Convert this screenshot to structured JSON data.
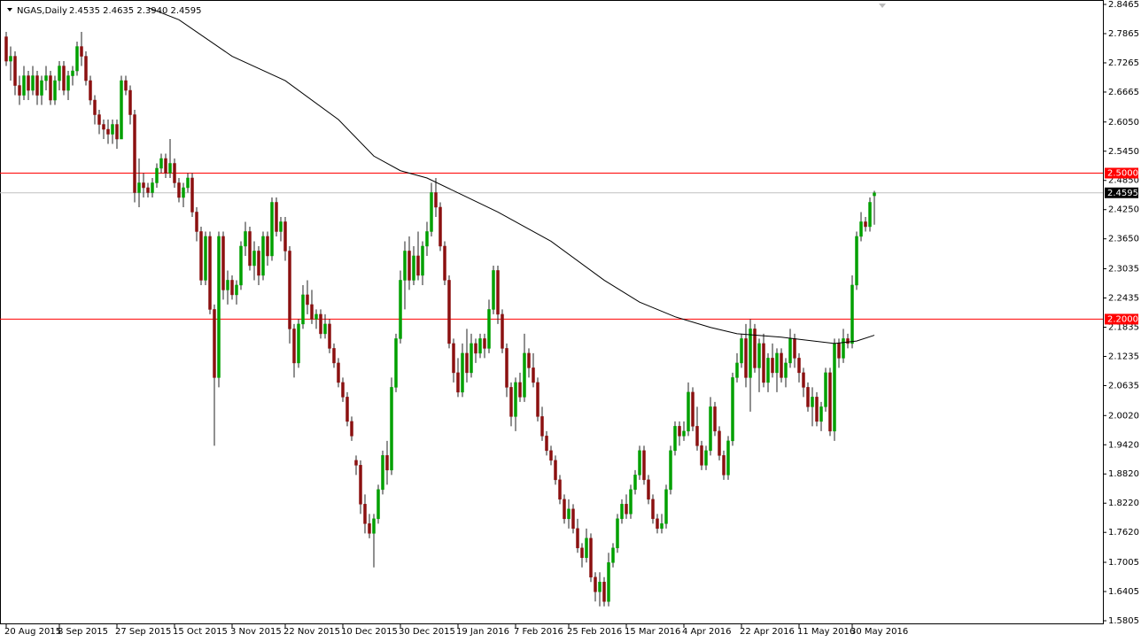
{
  "chart_data": {
    "type": "candlestick",
    "title": "NGAS,Daily",
    "header_ohlc": "2.4535 2.4635 2.3940 2.4595",
    "up_color": "#00a000",
    "down_color": "#8b1010",
    "wick_color": "#222222",
    "ma_color": "#000000",
    "level_color": "#ff0000",
    "current_color": "#c0c0c0",
    "xlim": [
      -1.4,
      247.6
    ],
    "ylim": [
      1.5805,
      2.8465
    ],
    "yticks": [
      2.8465,
      2.7865,
      2.7265,
      2.6665,
      {
        "value": 2.605,
        "label": "2.6050"
      },
      {
        "value": 2.545,
        "label": "2.5450"
      },
      {
        "value": 2.485,
        "label": "2.4850"
      },
      {
        "value": 2.425,
        "label": "2.4250"
      },
      {
        "value": 2.365,
        "label": "2.3650"
      },
      2.3035,
      2.2435,
      2.1835,
      2.1235,
      2.0635,
      {
        "value": 2.002,
        "label": "2.0020"
      },
      {
        "value": 1.942,
        "label": "1.9420"
      },
      {
        "value": 1.882,
        "label": "1.8820"
      },
      {
        "value": 1.822,
        "label": "1.8220"
      },
      {
        "value": 1.762,
        "label": "1.7620"
      },
      1.7005,
      1.6405,
      1.5805
    ],
    "xticks": [
      {
        "value": 0,
        "label": "20 Aug 2015"
      },
      {
        "value": 12,
        "label": "8 Sep 2015"
      },
      {
        "value": 25,
        "label": "27 Sep 2015"
      },
      {
        "value": 38,
        "label": "15 Oct 2015"
      },
      {
        "value": 51,
        "label": "3 Nov 2015"
      },
      {
        "value": 63,
        "label": "22 Nov 2015"
      },
      {
        "value": 76,
        "label": "10 Dec 2015"
      },
      {
        "value": 89,
        "label": "30 Dec 2015"
      },
      {
        "value": 102,
        "label": "19 Jan 2016"
      },
      {
        "value": 115,
        "label": "7 Feb 2016"
      },
      {
        "value": 127,
        "label": "25 Feb 2016"
      },
      {
        "value": 140,
        "label": "15 Mar 2016"
      },
      {
        "value": 153,
        "label": "4 Apr 2016"
      },
      {
        "value": 166,
        "label": "22 Apr 2016"
      },
      {
        "value": 179,
        "label": "11 May 2016"
      },
      {
        "value": 191,
        "label": "30 May 2016"
      }
    ],
    "levels": [
      {
        "value": 2.5,
        "label": "2.5000"
      },
      {
        "value": 2.2,
        "label": "2.2000"
      }
    ],
    "current_price": 2.4595,
    "ma": {
      "x": [
        32,
        39,
        51,
        63,
        75,
        83,
        89,
        95,
        103,
        111,
        123,
        135,
        143,
        151,
        159,
        165,
        175,
        187,
        192,
        196
      ],
      "values": [
        2.84,
        2.815,
        2.74,
        2.69,
        2.61,
        2.535,
        2.505,
        2.49,
        2.455,
        2.42,
        2.36,
        2.28,
        2.235,
        2.205,
        2.183,
        2.17,
        2.163,
        2.15,
        2.155,
        2.167
      ]
    },
    "candles": [
      [
        2.78,
        2.79,
        2.72,
        2.73
      ],
      [
        2.73,
        2.76,
        2.69,
        2.74
      ],
      [
        2.74,
        2.75,
        2.66,
        2.68
      ],
      [
        2.68,
        2.7,
        2.64,
        2.66
      ],
      [
        2.66,
        2.72,
        2.65,
        2.7
      ],
      [
        2.7,
        2.71,
        2.65,
        2.67
      ],
      [
        2.67,
        2.72,
        2.66,
        2.7
      ],
      [
        2.7,
        2.71,
        2.64,
        2.66
      ],
      [
        2.66,
        2.7,
        2.64,
        2.69
      ],
      [
        2.69,
        2.72,
        2.67,
        2.7
      ],
      [
        2.7,
        2.71,
        2.64,
        2.65
      ],
      [
        2.65,
        2.7,
        2.64,
        2.69
      ],
      [
        2.69,
        2.73,
        2.67,
        2.72
      ],
      [
        2.72,
        2.73,
        2.66,
        2.67
      ],
      [
        2.67,
        2.71,
        2.65,
        2.7
      ],
      [
        2.7,
        2.72,
        2.68,
        2.71
      ],
      [
        2.71,
        2.77,
        2.7,
        2.76
      ],
      [
        2.76,
        2.79,
        2.72,
        2.74
      ],
      [
        2.74,
        2.75,
        2.68,
        2.69
      ],
      [
        2.69,
        2.7,
        2.64,
        2.65
      ],
      [
        2.65,
        2.66,
        2.6,
        2.62
      ],
      [
        2.62,
        2.63,
        2.58,
        2.6
      ],
      [
        2.6,
        2.61,
        2.57,
        2.59
      ],
      [
        2.59,
        2.61,
        2.56,
        2.58
      ],
      [
        2.58,
        2.61,
        2.56,
        2.6
      ],
      [
        2.6,
        2.61,
        2.55,
        2.57
      ],
      [
        2.57,
        2.7,
        2.57,
        2.69
      ],
      [
        2.69,
        2.7,
        2.66,
        2.67
      ],
      [
        2.67,
        2.68,
        2.6,
        2.62
      ],
      [
        2.62,
        2.63,
        2.44,
        2.46
      ],
      [
        2.46,
        2.53,
        2.43,
        2.48
      ],
      [
        2.48,
        2.5,
        2.45,
        2.47
      ],
      [
        2.47,
        2.48,
        2.45,
        2.46
      ],
      [
        2.46,
        2.49,
        2.45,
        2.48
      ],
      [
        2.48,
        2.52,
        2.47,
        2.51
      ],
      [
        2.51,
        2.54,
        2.5,
        2.53
      ],
      [
        2.53,
        2.54,
        2.49,
        2.5
      ],
      [
        2.5,
        2.57,
        2.49,
        2.52
      ],
      [
        2.52,
        2.53,
        2.47,
        2.48
      ],
      [
        2.48,
        2.49,
        2.44,
        2.45
      ],
      [
        2.45,
        2.48,
        2.43,
        2.47
      ],
      [
        2.47,
        2.5,
        2.46,
        2.49
      ],
      [
        2.49,
        2.5,
        2.41,
        2.42
      ],
      [
        2.42,
        2.43,
        2.36,
        2.38
      ],
      [
        2.38,
        2.39,
        2.27,
        2.28
      ],
      [
        2.28,
        2.38,
        2.27,
        2.37
      ],
      [
        2.37,
        2.38,
        2.21,
        2.22
      ],
      [
        2.22,
        2.23,
        1.94,
        2.08
      ],
      [
        2.08,
        2.38,
        2.06,
        2.37
      ],
      [
        2.37,
        2.38,
        2.24,
        2.26
      ],
      [
        2.26,
        2.3,
        2.23,
        2.28
      ],
      [
        2.28,
        2.29,
        2.24,
        2.25
      ],
      [
        2.25,
        2.28,
        2.23,
        2.27
      ],
      [
        2.27,
        2.36,
        2.26,
        2.35
      ],
      [
        2.35,
        2.4,
        2.33,
        2.38
      ],
      [
        2.38,
        2.39,
        2.3,
        2.31
      ],
      [
        2.31,
        2.36,
        2.28,
        2.34
      ],
      [
        2.34,
        2.35,
        2.27,
        2.29
      ],
      [
        2.29,
        2.38,
        2.28,
        2.37
      ],
      [
        2.37,
        2.38,
        2.31,
        2.33
      ],
      [
        2.33,
        2.45,
        2.32,
        2.44
      ],
      [
        2.44,
        2.45,
        2.37,
        2.38
      ],
      [
        2.38,
        2.41,
        2.36,
        2.4
      ],
      [
        2.4,
        2.41,
        2.32,
        2.34
      ],
      [
        2.34,
        2.35,
        2.15,
        2.18
      ],
      [
        2.18,
        2.19,
        2.08,
        2.11
      ],
      [
        2.11,
        2.2,
        2.1,
        2.19
      ],
      [
        2.19,
        2.27,
        2.18,
        2.25
      ],
      [
        2.25,
        2.28,
        2.21,
        2.23
      ],
      [
        2.23,
        2.26,
        2.19,
        2.2
      ],
      [
        2.2,
        2.22,
        2.18,
        2.21
      ],
      [
        2.21,
        2.22,
        2.16,
        2.17
      ],
      [
        2.17,
        2.21,
        2.16,
        2.19
      ],
      [
        2.19,
        2.2,
        2.13,
        2.14
      ],
      [
        2.14,
        2.15,
        2.1,
        2.11
      ],
      [
        2.11,
        2.12,
        2.06,
        2.07
      ],
      [
        2.07,
        2.08,
        2.03,
        2.04
      ],
      [
        2.04,
        2.05,
        1.98,
        1.99
      ],
      [
        1.99,
        2.0,
        1.95,
        1.96
      ],
      [
        1.91,
        1.92,
        1.88,
        1.9
      ],
      [
        1.9,
        1.91,
        1.8,
        1.82
      ],
      [
        1.82,
        1.84,
        1.76,
        1.78
      ],
      [
        1.78,
        1.8,
        1.75,
        1.76
      ],
      [
        1.76,
        1.8,
        1.69,
        1.79
      ],
      [
        1.79,
        1.86,
        1.78,
        1.85
      ],
      [
        1.85,
        1.93,
        1.84,
        1.92
      ],
      [
        1.92,
        1.95,
        1.86,
        1.89
      ],
      [
        1.89,
        2.08,
        1.88,
        2.06
      ],
      [
        2.06,
        2.17,
        2.05,
        2.16
      ],
      [
        2.16,
        2.3,
        2.15,
        2.28
      ],
      [
        2.28,
        2.36,
        2.22,
        2.34
      ],
      [
        2.34,
        2.37,
        2.26,
        2.28
      ],
      [
        2.28,
        2.35,
        2.27,
        2.33
      ],
      [
        2.33,
        2.38,
        2.28,
        2.29
      ],
      [
        2.29,
        2.36,
        2.27,
        2.35
      ],
      [
        2.35,
        2.4,
        2.33,
        2.38
      ],
      [
        2.38,
        2.48,
        2.37,
        2.46
      ],
      [
        2.46,
        2.49,
        2.41,
        2.43
      ],
      [
        2.43,
        2.44,
        2.34,
        2.35
      ],
      [
        2.35,
        2.36,
        2.27,
        2.28
      ],
      [
        2.28,
        2.29,
        2.14,
        2.15
      ],
      [
        2.15,
        2.16,
        2.07,
        2.09
      ],
      [
        2.09,
        2.12,
        2.04,
        2.05
      ],
      [
        2.05,
        2.15,
        2.04,
        2.13
      ],
      [
        2.13,
        2.18,
        2.07,
        2.09
      ],
      [
        2.09,
        2.17,
        2.08,
        2.15
      ],
      [
        2.15,
        2.16,
        2.11,
        2.13
      ],
      [
        2.13,
        2.17,
        2.12,
        2.16
      ],
      [
        2.16,
        2.17,
        2.12,
        2.14
      ],
      [
        2.14,
        2.24,
        2.13,
        2.22
      ],
      [
        2.22,
        2.31,
        2.21,
        2.3
      ],
      [
        2.3,
        2.31,
        2.19,
        2.21
      ],
      [
        2.21,
        2.22,
        2.13,
        2.14
      ],
      [
        2.14,
        2.15,
        2.04,
        2.06
      ],
      [
        2.06,
        2.07,
        1.98,
        2.0
      ],
      [
        2.0,
        2.08,
        1.97,
        2.07
      ],
      [
        2.07,
        2.09,
        2.03,
        2.04
      ],
      [
        2.04,
        2.17,
        2.03,
        2.13
      ],
      [
        2.13,
        2.14,
        2.08,
        2.1
      ],
      [
        2.1,
        2.13,
        2.06,
        2.07
      ],
      [
        2.07,
        2.08,
        1.99,
        2.0
      ],
      [
        2.0,
        2.02,
        1.95,
        1.96
      ],
      [
        1.96,
        1.97,
        1.92,
        1.93
      ],
      [
        1.93,
        1.94,
        1.9,
        1.91
      ],
      [
        1.91,
        1.92,
        1.86,
        1.87
      ],
      [
        1.87,
        1.88,
        1.82,
        1.83
      ],
      [
        1.83,
        1.84,
        1.78,
        1.79
      ],
      [
        1.79,
        1.83,
        1.77,
        1.81
      ],
      [
        1.81,
        1.82,
        1.76,
        1.77
      ],
      [
        1.77,
        1.79,
        1.72,
        1.73
      ],
      [
        1.73,
        1.74,
        1.69,
        1.71
      ],
      [
        1.71,
        1.77,
        1.7,
        1.75
      ],
      [
        1.75,
        1.76,
        1.66,
        1.67
      ],
      [
        1.67,
        1.68,
        1.62,
        1.64
      ],
      [
        1.64,
        1.68,
        1.61,
        1.66
      ],
      [
        1.66,
        1.67,
        1.61,
        1.62
      ],
      [
        1.62,
        1.72,
        1.61,
        1.7
      ],
      [
        1.7,
        1.74,
        1.69,
        1.73
      ],
      [
        1.73,
        1.8,
        1.72,
        1.79
      ],
      [
        1.79,
        1.83,
        1.78,
        1.82
      ],
      [
        1.82,
        1.84,
        1.79,
        1.8
      ],
      [
        1.8,
        1.86,
        1.79,
        1.85
      ],
      [
        1.85,
        1.89,
        1.84,
        1.88
      ],
      [
        1.88,
        1.94,
        1.87,
        1.93
      ],
      [
        1.93,
        1.94,
        1.86,
        1.87
      ],
      [
        1.87,
        1.88,
        1.82,
        1.83
      ],
      [
        1.83,
        1.84,
        1.78,
        1.79
      ],
      [
        1.79,
        1.8,
        1.76,
        1.77
      ],
      [
        1.77,
        1.8,
        1.76,
        1.78
      ],
      [
        1.78,
        1.86,
        1.77,
        1.85
      ],
      [
        1.85,
        1.94,
        1.84,
        1.93
      ],
      [
        1.93,
        1.99,
        1.92,
        1.98
      ],
      [
        1.98,
        1.99,
        1.94,
        1.96
      ],
      [
        1.96,
        1.99,
        1.95,
        1.97
      ],
      [
        1.97,
        2.07,
        1.96,
        2.05
      ],
      [
        2.05,
        2.06,
        1.97,
        1.98
      ],
      [
        1.98,
        2.02,
        1.93,
        1.94
      ],
      [
        1.94,
        1.95,
        1.89,
        1.9
      ],
      [
        1.9,
        1.94,
        1.89,
        1.93
      ],
      [
        1.93,
        2.04,
        1.92,
        2.02
      ],
      [
        2.02,
        2.03,
        1.96,
        1.97
      ],
      [
        1.97,
        1.98,
        1.91,
        1.92
      ],
      [
        1.92,
        1.93,
        1.87,
        1.88
      ],
      [
        1.88,
        1.96,
        1.87,
        1.95
      ],
      [
        1.95,
        2.09,
        1.94,
        2.08
      ],
      [
        2.08,
        2.13,
        2.07,
        2.11
      ],
      [
        2.11,
        2.17,
        2.1,
        2.16
      ],
      [
        2.16,
        2.19,
        2.06,
        2.08
      ],
      [
        2.08,
        2.2,
        2.01,
        2.18
      ],
      [
        2.18,
        2.19,
        2.09,
        2.1
      ],
      [
        2.1,
        2.16,
        2.05,
        2.15
      ],
      [
        2.15,
        2.17,
        2.06,
        2.07
      ],
      [
        2.07,
        2.13,
        2.05,
        2.12
      ],
      [
        2.12,
        2.15,
        2.08,
        2.09
      ],
      [
        2.09,
        2.14,
        2.05,
        2.13
      ],
      [
        2.13,
        2.14,
        2.07,
        2.08
      ],
      [
        2.08,
        2.12,
        2.06,
        2.11
      ],
      [
        2.11,
        2.18,
        2.1,
        2.16
      ],
      [
        2.16,
        2.17,
        2.1,
        2.12
      ],
      [
        2.12,
        2.13,
        2.07,
        2.09
      ],
      [
        2.09,
        2.1,
        2.04,
        2.06
      ],
      [
        2.06,
        2.07,
        2.01,
        2.02
      ],
      [
        2.02,
        2.06,
        1.98,
        2.04
      ],
      [
        2.04,
        2.05,
        1.98,
        1.99
      ],
      [
        1.99,
        2.03,
        1.97,
        2.02
      ],
      [
        2.02,
        2.1,
        2.01,
        2.09
      ],
      [
        2.09,
        2.1,
        1.96,
        1.97
      ],
      [
        1.97,
        2.16,
        1.95,
        2.15
      ],
      [
        2.15,
        2.16,
        2.1,
        2.12
      ],
      [
        2.12,
        2.18,
        2.11,
        2.16
      ],
      [
        2.16,
        2.17,
        2.14,
        2.15
      ],
      [
        2.15,
        2.29,
        2.14,
        2.27
      ],
      [
        2.27,
        2.38,
        2.26,
        2.37
      ],
      [
        2.37,
        2.42,
        2.36,
        2.4
      ],
      [
        2.4,
        2.41,
        2.38,
        2.39
      ],
      [
        2.39,
        2.45,
        2.38,
        2.44
      ],
      [
        2.4535,
        2.4635,
        2.394,
        2.4595
      ]
    ]
  }
}
